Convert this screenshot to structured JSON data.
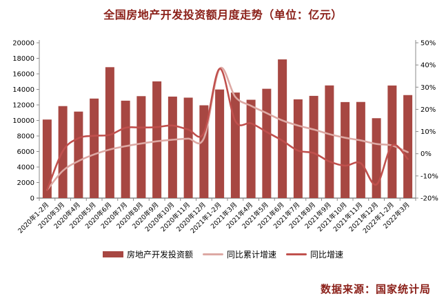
{
  "title": "全国房地产开发投资额月度走势（单位：亿元）",
  "footer": "数据来源：国家统计局",
  "colors": {
    "bar": "#A74742",
    "line_cumulative": "#DDA9A4",
    "line_yoy": "#C0504D",
    "axis": "#898989",
    "tick_text": "#000000",
    "title_text": "#8B2019"
  },
  "legend": [
    {
      "label": "房地产开发投资额",
      "type": "bar",
      "color": "#A74742"
    },
    {
      "label": "同比累计增速",
      "type": "line",
      "color": "#DDA9A4"
    },
    {
      "label": "同比增速",
      "type": "line",
      "color": "#C0504D"
    }
  ],
  "chart_data": {
    "type": "combo-bar-line",
    "title": "全国房地产开发投资额月度走势（单位：亿元）",
    "grid": false,
    "legend_position": "bottom",
    "categories": [
      "2020年1-2月",
      "2020年3月",
      "2020年4月",
      "2020年5月",
      "2020年6月",
      "2020年7月",
      "2020年8月",
      "2020年9月",
      "2020年10月",
      "2020年11月",
      "2020年12月",
      "2021年1-2月",
      "2021年3月",
      "2021年4月",
      "2021年5月",
      "2021年6月",
      "2021年7月",
      "2021年8月",
      "2021年9月",
      "2021年10月",
      "2021年11月",
      "2021年12月",
      "2022年1-2月",
      "2022年3月"
    ],
    "series": [
      {
        "name": "房地产开发投资额",
        "type": "bar",
        "axis": "left",
        "values": [
          10115,
          11848,
          11140,
          12817,
          16860,
          12545,
          13129,
          15030,
          13072,
          12936,
          11951,
          13986,
          13590,
          12664,
          14078,
          17861,
          12716,
          13165,
          14508,
          12366,
          12380,
          10288,
          14499,
          13266
        ]
      },
      {
        "name": "同比累计增速",
        "type": "line",
        "axis": "right",
        "values": [
          -16.3,
          -7.7,
          -3.3,
          -0.3,
          1.9,
          3.4,
          4.6,
          5.6,
          6.3,
          6.8,
          7.0,
          38.3,
          25.6,
          21.6,
          18.3,
          15.0,
          12.7,
          10.9,
          8.8,
          7.2,
          6.0,
          4.4,
          3.7,
          0.7
        ]
      },
      {
        "name": "同比增速",
        "type": "line",
        "axis": "right",
        "values": [
          -16.3,
          1.2,
          7.0,
          8.1,
          8.5,
          11.7,
          11.8,
          12.0,
          12.7,
          10.9,
          9.4,
          38.3,
          14.7,
          13.7,
          9.8,
          5.9,
          1.4,
          0.3,
          -3.5,
          -5.4,
          -4.3,
          -13.9,
          3.7,
          -2.4
        ]
      }
    ],
    "left_axis": {
      "min": 0,
      "max": 20000,
      "step": 2000,
      "ticks": [
        "0",
        "2000",
        "4000",
        "6000",
        "8000",
        "10000",
        "12000",
        "14000",
        "16000",
        "18000",
        "20000"
      ]
    },
    "right_axis": {
      "min": -20,
      "max": 50,
      "step": 10,
      "format": "percent",
      "ticks": [
        "-20%",
        "-10%",
        "0%",
        "10%",
        "20%",
        "30%",
        "40%",
        "50%"
      ]
    }
  }
}
